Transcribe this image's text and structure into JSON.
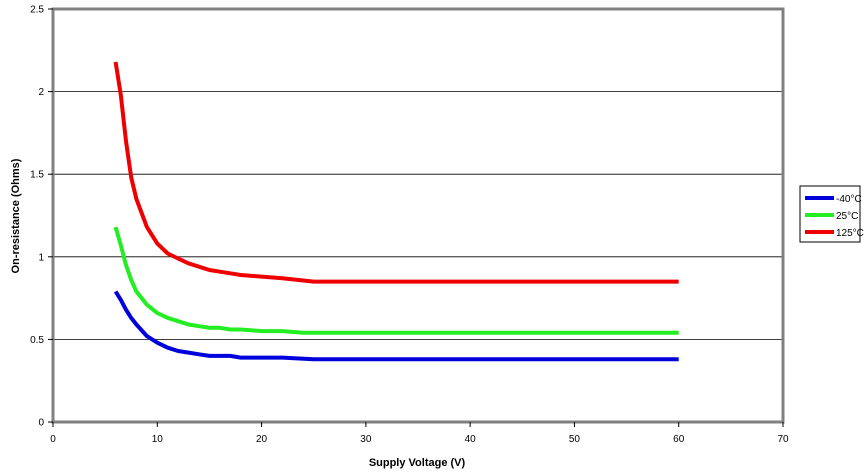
{
  "chart_data": {
    "type": "line",
    "title": "",
    "xlabel": "Supply Voltage (V)",
    "ylabel": "On-resistance (Ohms)",
    "xlim": [
      0,
      70
    ],
    "ylim": [
      0,
      2.5
    ],
    "x_ticks": [
      "0",
      "10",
      "20",
      "30",
      "40",
      "50",
      "60",
      "70"
    ],
    "y_ticks": [
      "0",
      "0.5",
      "1",
      "1.5",
      "2",
      "2.5"
    ],
    "grid": "horizontal",
    "legend_position": "right",
    "series": [
      {
        "name": "-40°C",
        "color": "#0000dd",
        "x": [
          6,
          6.5,
          7,
          7.5,
          8,
          9,
          10,
          11,
          12,
          13,
          14,
          15,
          16,
          17,
          18,
          20,
          22,
          25,
          26,
          28,
          30,
          40,
          50,
          60
        ],
        "y": [
          0.79,
          0.74,
          0.68,
          0.63,
          0.59,
          0.52,
          0.48,
          0.45,
          0.43,
          0.42,
          0.41,
          0.4,
          0.4,
          0.4,
          0.39,
          0.39,
          0.39,
          0.38,
          0.38,
          0.38,
          0.38,
          0.38,
          0.38,
          0.38
        ]
      },
      {
        "name": " 25°C",
        "color": "#22ee22",
        "x": [
          6,
          6.5,
          7,
          7.5,
          8,
          9,
          10,
          11,
          12,
          13,
          14,
          15,
          16,
          17,
          18,
          20,
          22,
          24,
          26,
          30,
          40,
          50,
          60
        ],
        "y": [
          1.18,
          1.07,
          0.95,
          0.86,
          0.79,
          0.71,
          0.66,
          0.63,
          0.61,
          0.59,
          0.58,
          0.57,
          0.57,
          0.56,
          0.56,
          0.55,
          0.55,
          0.54,
          0.54,
          0.54,
          0.54,
          0.54,
          0.54
        ]
      },
      {
        "name": "125°C",
        "color": "#ee0000",
        "x": [
          6,
          6.5,
          7,
          7.5,
          8,
          9,
          10,
          11,
          12,
          13,
          14,
          15,
          16,
          17,
          18,
          20,
          22,
          25,
          26,
          30,
          40,
          50,
          60
        ],
        "y": [
          2.18,
          1.98,
          1.7,
          1.48,
          1.35,
          1.18,
          1.08,
          1.02,
          0.99,
          0.96,
          0.94,
          0.92,
          0.91,
          0.9,
          0.89,
          0.88,
          0.87,
          0.85,
          0.85,
          0.85,
          0.85,
          0.85,
          0.85
        ]
      }
    ]
  }
}
